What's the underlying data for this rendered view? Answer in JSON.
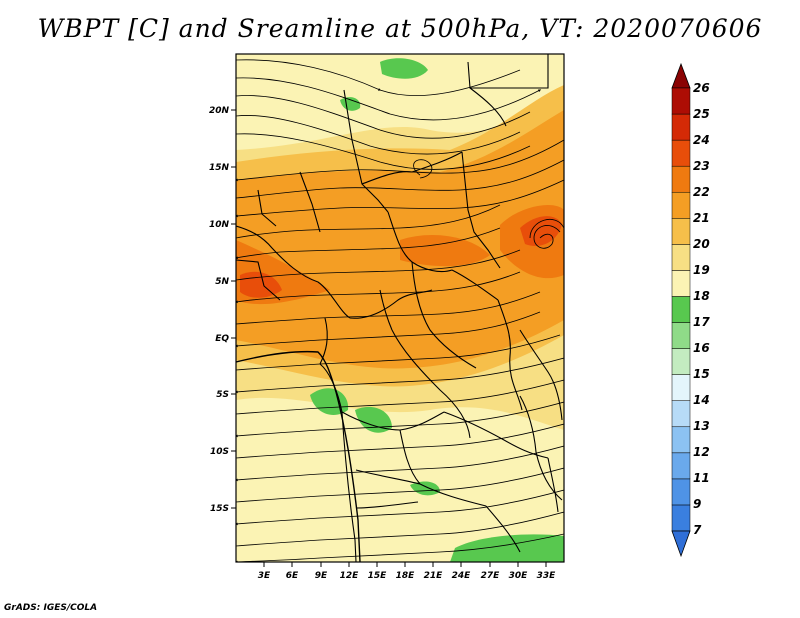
{
  "title": "WBPT [C] and Sreamline at 500hPa, VT: 2020070606",
  "credit": "GrADS: IGES/COLA",
  "map": {
    "lon_ticks": [
      "3E",
      "6E",
      "9E",
      "12E",
      "15E",
      "18E",
      "21E",
      "24E",
      "27E",
      "30E",
      "33E"
    ],
    "lat_ticks": [
      "20N",
      "15N",
      "10N",
      "5N",
      "EQ",
      "5S",
      "10S",
      "15S"
    ]
  },
  "colorbar": {
    "labels": [
      "7",
      "9",
      "11",
      "12",
      "13",
      "14",
      "15",
      "16",
      "17",
      "18",
      "19",
      "20",
      "21",
      "22",
      "23",
      "24",
      "25",
      "26"
    ],
    "colors": [
      "#3a7fdf",
      "#4f93e6",
      "#6aa9ec",
      "#8cc2f2",
      "#b7dbf7",
      "#e4f5fb",
      "#c3ecc0",
      "#8fdb88",
      "#58c84f",
      "#fbf3b4",
      "#f7df84",
      "#f6bf4a",
      "#f49e24",
      "#ef7a10",
      "#e84e0a",
      "#d42a06",
      "#ad0d04"
    ],
    "top_arrow_color": "#8a0303",
    "bottom_arrow_color": "#2f6fd8"
  },
  "legend_colors": {
    "t18": "#fbf3b4",
    "t19": "#f7df84",
    "t20": "#f6bf4a",
    "t21": "#f49e24",
    "t22": "#ef7a10",
    "t23": "#e84e0a",
    "t17": "#58c84f"
  }
}
